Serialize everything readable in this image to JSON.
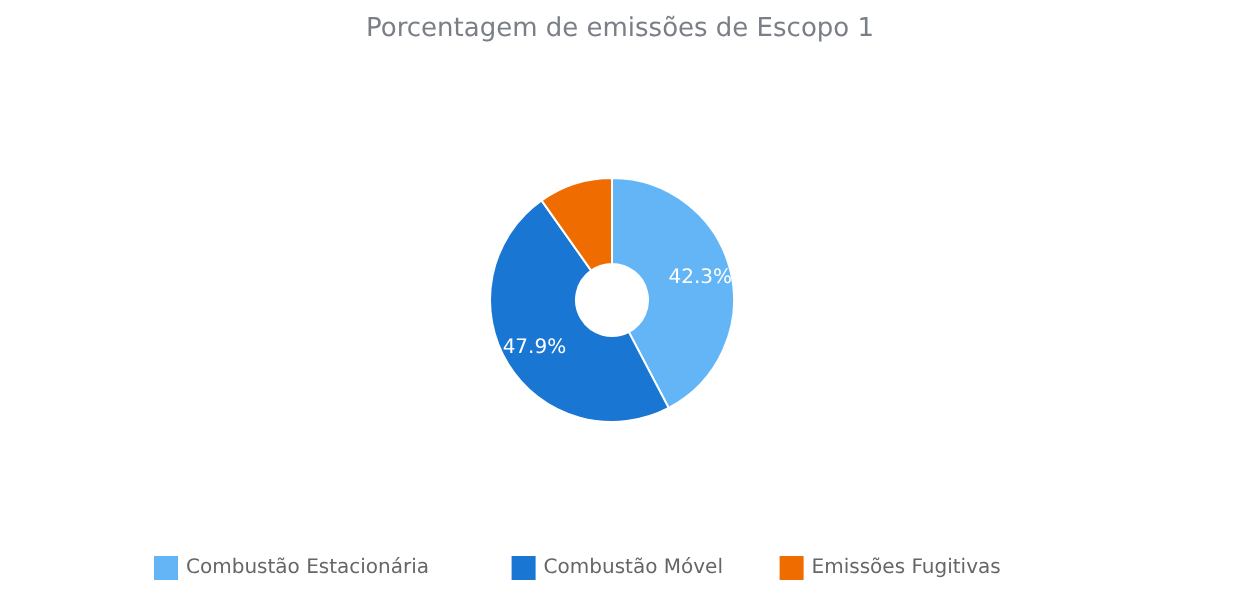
{
  "chart_data": {
    "type": "donut",
    "title": "Porcentagem de emissões de Escopo 1",
    "categories": [
      "Combustão Estacionária",
      "Combustão Móvel",
      "Emissões Fugitivas"
    ],
    "values": [
      42.3,
      47.9,
      9.8
    ],
    "colors": [
      "#64b5f6",
      "#1976d2",
      "#ef6c00"
    ],
    "value_labels": [
      "42.3%",
      "47.9%",
      null
    ],
    "legend": "bottom"
  }
}
